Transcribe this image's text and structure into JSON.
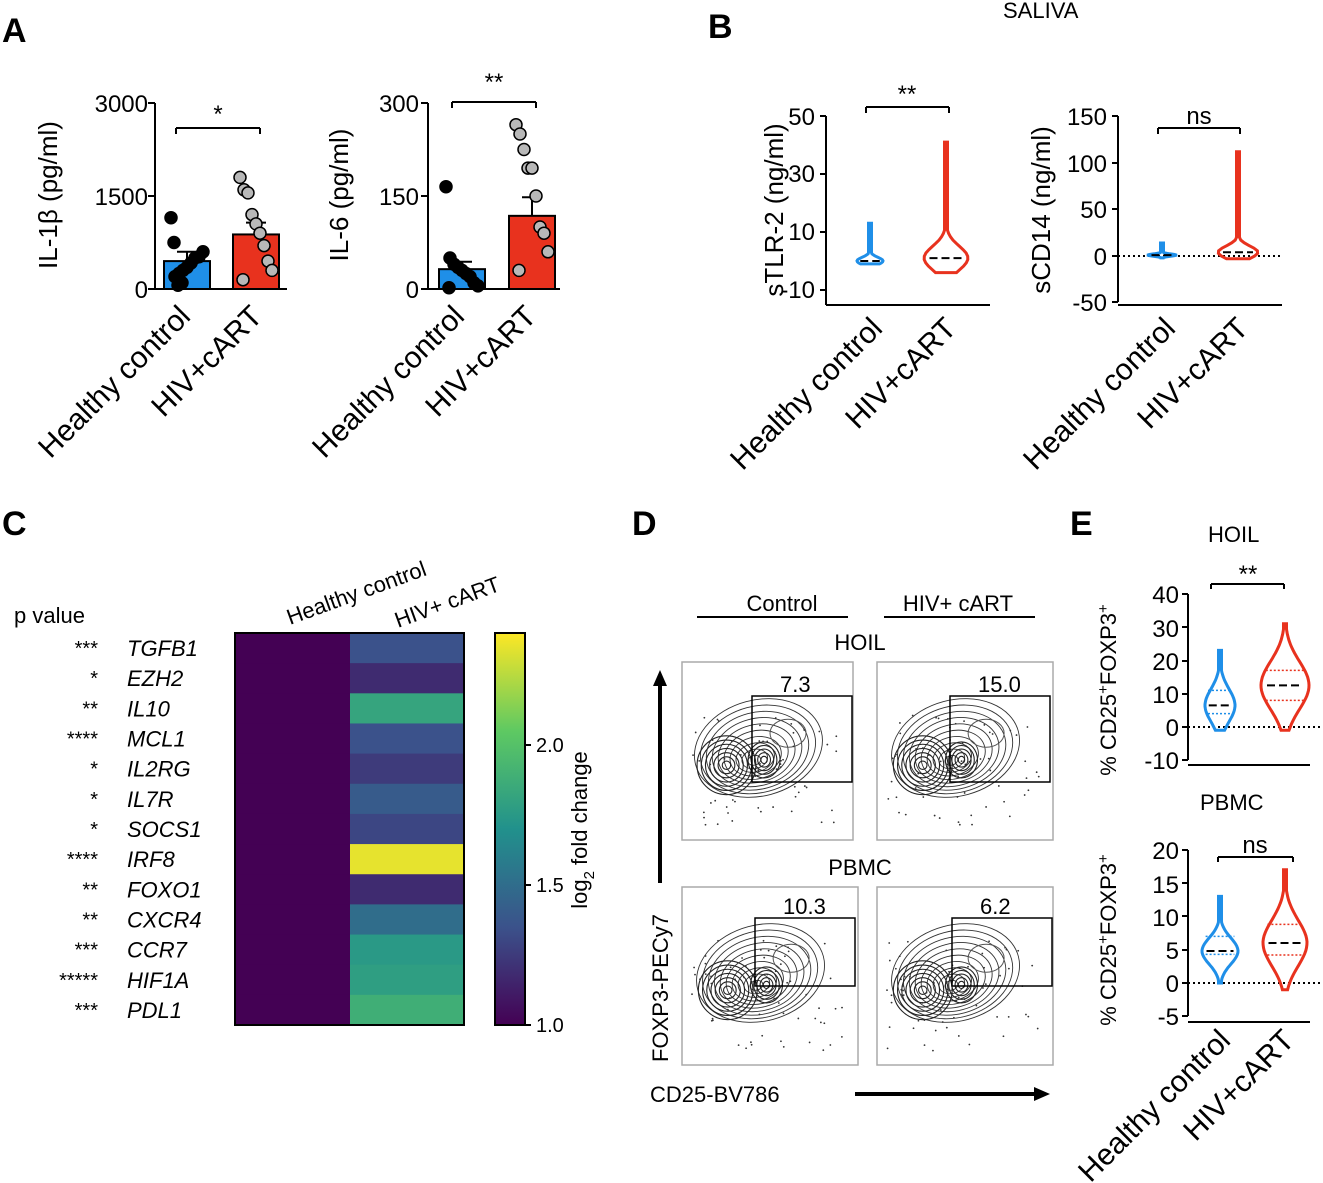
{
  "figure": {
    "panels": {
      "A": "A",
      "B": "B",
      "C": "C",
      "D": "D",
      "E": "E"
    },
    "saliva_label": "SALIVA",
    "hoil_label": "HOIL",
    "pbmc_label": "PBMC"
  },
  "colors": {
    "healthy": "#1f8fe8",
    "hiv": "#e8321e",
    "dot_healthy": "#000000",
    "dot_hiv": "#b8b8b8"
  },
  "chart_data": [
    {
      "id": "A1",
      "type": "bar",
      "categories": [
        "Healthy control",
        "HIV+cART"
      ],
      "values": [
        450,
        880
      ],
      "errors": [
        150,
        190
      ],
      "points": [
        [
          1150,
          200,
          250,
          300,
          350,
          420,
          500,
          520,
          600,
          750,
          60,
          100
        ],
        [
          1800,
          1600,
          1550,
          1200,
          1050,
          900,
          700,
          450,
          300,
          150
        ]
      ],
      "ylim": [
        0,
        3000
      ],
      "yticks": [
        "0",
        "1500",
        "3000"
      ],
      "ylabel": "IL-1β (pg/ml)",
      "significance": "*"
    },
    {
      "id": "A2",
      "type": "bar",
      "categories": [
        "Healthy control",
        "HIV+cART"
      ],
      "values": [
        32,
        118
      ],
      "errors": [
        12,
        30
      ],
      "points": [
        [
          165,
          50,
          40,
          35,
          30,
          25,
          20,
          10,
          5,
          2
        ],
        [
          265,
          250,
          225,
          195,
          195,
          150,
          100,
          90,
          60,
          30
        ]
      ],
      "ylim": [
        0,
        300
      ],
      "yticks": [
        "0",
        "150",
        "300"
      ],
      "ylabel": "IL-6 (pg/ml)",
      "significance": "**"
    },
    {
      "id": "B1",
      "type": "violin",
      "categories": [
        "Healthy control",
        "HIV+cART"
      ],
      "medians": [
        0,
        1
      ],
      "max": [
        13,
        41
      ],
      "min": [
        -1,
        -4
      ],
      "ylim": [
        -15,
        50
      ],
      "yticks": [
        "-10",
        "10",
        "30",
        "50"
      ],
      "ylabel": "sTLR-2 (ng/ml)",
      "significance": "**"
    },
    {
      "id": "B2",
      "type": "violin",
      "categories": [
        "Healthy control",
        "HIV+cART"
      ],
      "medians": [
        1,
        4
      ],
      "max": [
        14,
        112
      ],
      "min": [
        -2,
        -3
      ],
      "ylim": [
        -50,
        150
      ],
      "yticks": [
        "-50",
        "0",
        "50",
        "100",
        "150"
      ],
      "ylabel": "sCD14 (ng/ml)",
      "significance": "ns"
    },
    {
      "id": "C",
      "type": "heatmap",
      "columns": [
        "Healthy control",
        "HIV+ cART"
      ],
      "p_value_label": "p value",
      "genes": [
        "TGFB1",
        "EZH2",
        "IL10",
        "MCL1",
        "IL2RG",
        "IL7R",
        "SOCS1",
        "IRF8",
        "FOXO1",
        "CXCR4",
        "CCR7",
        "HIF1A",
        "PDL1"
      ],
      "pvalues": [
        "***",
        "*",
        "**",
        "****",
        "*",
        "*",
        "*",
        "****",
        "**",
        "**",
        "***",
        "*****",
        "***"
      ],
      "healthy_values": [
        1,
        1,
        1,
        1,
        1,
        1,
        1,
        1,
        1,
        1,
        1,
        1,
        1
      ],
      "hiv_values": [
        1.35,
        1.18,
        1.82,
        1.35,
        1.25,
        1.4,
        1.3,
        2.35,
        1.18,
        1.5,
        1.75,
        1.78,
        1.88
      ],
      "colorbar_ticks": [
        "1.0",
        "1.5",
        "2.0"
      ],
      "colorbar_label": "log",
      "colorbar_sub": "2",
      "colorbar_label_rest": " fold change",
      "range": [
        1,
        2.4
      ]
    },
    {
      "id": "D",
      "type": "flow",
      "columns": [
        "Control",
        "HIV+ cART"
      ],
      "rows": [
        "HOIL",
        "PBMC"
      ],
      "gate_values": [
        [
          "7.3",
          "15.0"
        ],
        [
          "10.3",
          "6.2"
        ]
      ],
      "ylabel": "FOXP3-PECy7",
      "xlabel": "CD25-BV786"
    },
    {
      "id": "E1",
      "type": "violin",
      "title": "HOIL",
      "categories": [
        "Healthy control",
        "HIV+cART"
      ],
      "medians": [
        6.5,
        12.5
      ],
      "q1": [
        4,
        8
      ],
      "q3": [
        11,
        17
      ],
      "max": [
        23,
        31
      ],
      "min": [
        -1,
        -1
      ],
      "ylim": [
        -10,
        40
      ],
      "yticks": [
        "-10",
        "0",
        "10",
        "20",
        "30",
        "40"
      ],
      "ylabel_prefix": "% CD25",
      "ylabel_mid": "FOXP3",
      "ylabel_sup": "+",
      "significance": "**"
    },
    {
      "id": "E2",
      "type": "violin",
      "title": "PBMC",
      "categories": [
        "Healthy control",
        "HIV+cART"
      ],
      "medians": [
        4.8,
        6
      ],
      "q1": [
        4.3,
        4.2
      ],
      "q3": [
        7,
        8.8
      ],
      "max": [
        13,
        17
      ],
      "min": [
        0,
        -1
      ],
      "ylim": [
        -5,
        20
      ],
      "yticks": [
        "-5",
        "0",
        "5",
        "10",
        "15",
        "20"
      ],
      "ylabel_prefix": "% CD25",
      "ylabel_mid": "FOXP3",
      "ylabel_sup": "+",
      "significance": "ns"
    }
  ]
}
